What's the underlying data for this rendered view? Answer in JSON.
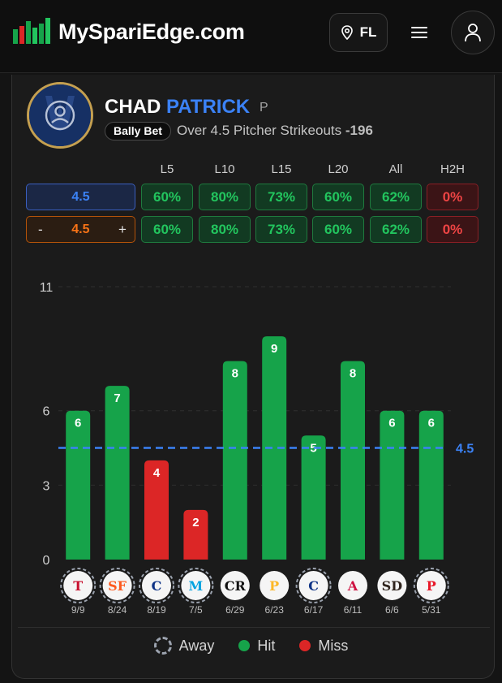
{
  "site": {
    "name": "MySpariEdge.com",
    "state": "FL"
  },
  "player": {
    "first_name": "CHAD",
    "last_name": "PATRICK",
    "position": "P"
  },
  "prop": {
    "book": "Bally Bet",
    "description": "Over 4.5 Pitcher Strikeouts",
    "odds": "-196"
  },
  "splits": {
    "headers": [
      "L5",
      "L10",
      "L15",
      "L20",
      "All",
      "H2H"
    ],
    "line_value": "4.5",
    "adjust_minus": "-",
    "adjust_plus": "+",
    "rows": [
      [
        "60%",
        "80%",
        "73%",
        "60%",
        "62%",
        "0%"
      ],
      [
        "60%",
        "80%",
        "73%",
        "60%",
        "62%",
        "0%"
      ]
    ]
  },
  "chart_data": {
    "type": "bar",
    "categories": [
      "9/9",
      "8/24",
      "8/19",
      "7/5",
      "6/29",
      "6/23",
      "6/17",
      "6/11",
      "6/6",
      "5/31"
    ],
    "values": [
      6,
      7,
      4,
      2,
      8,
      9,
      5,
      8,
      6,
      6
    ],
    "opponents": [
      "Twins",
      "Giants",
      "Cubs",
      "Marlins",
      "Rockies",
      "Pirates",
      "Cubs",
      "Braves",
      "Padres",
      "Phillies"
    ],
    "away": [
      true,
      true,
      true,
      true,
      false,
      false,
      true,
      false,
      false,
      true
    ],
    "result": [
      "hit",
      "hit",
      "miss",
      "miss",
      "hit",
      "hit",
      "hit",
      "hit",
      "hit",
      "hit"
    ],
    "yticks": [
      0,
      3,
      6,
      11
    ],
    "ylim": [
      0,
      11
    ],
    "threshold": 4.5,
    "threshold_label": "4.5",
    "grid": true
  },
  "legend": {
    "away": "Away",
    "hit": "Hit",
    "miss": "Miss"
  },
  "colors": {
    "hit": "#16a34a",
    "miss": "#dc2626",
    "accent": "#3b82f6",
    "adjust": "#f97316"
  }
}
